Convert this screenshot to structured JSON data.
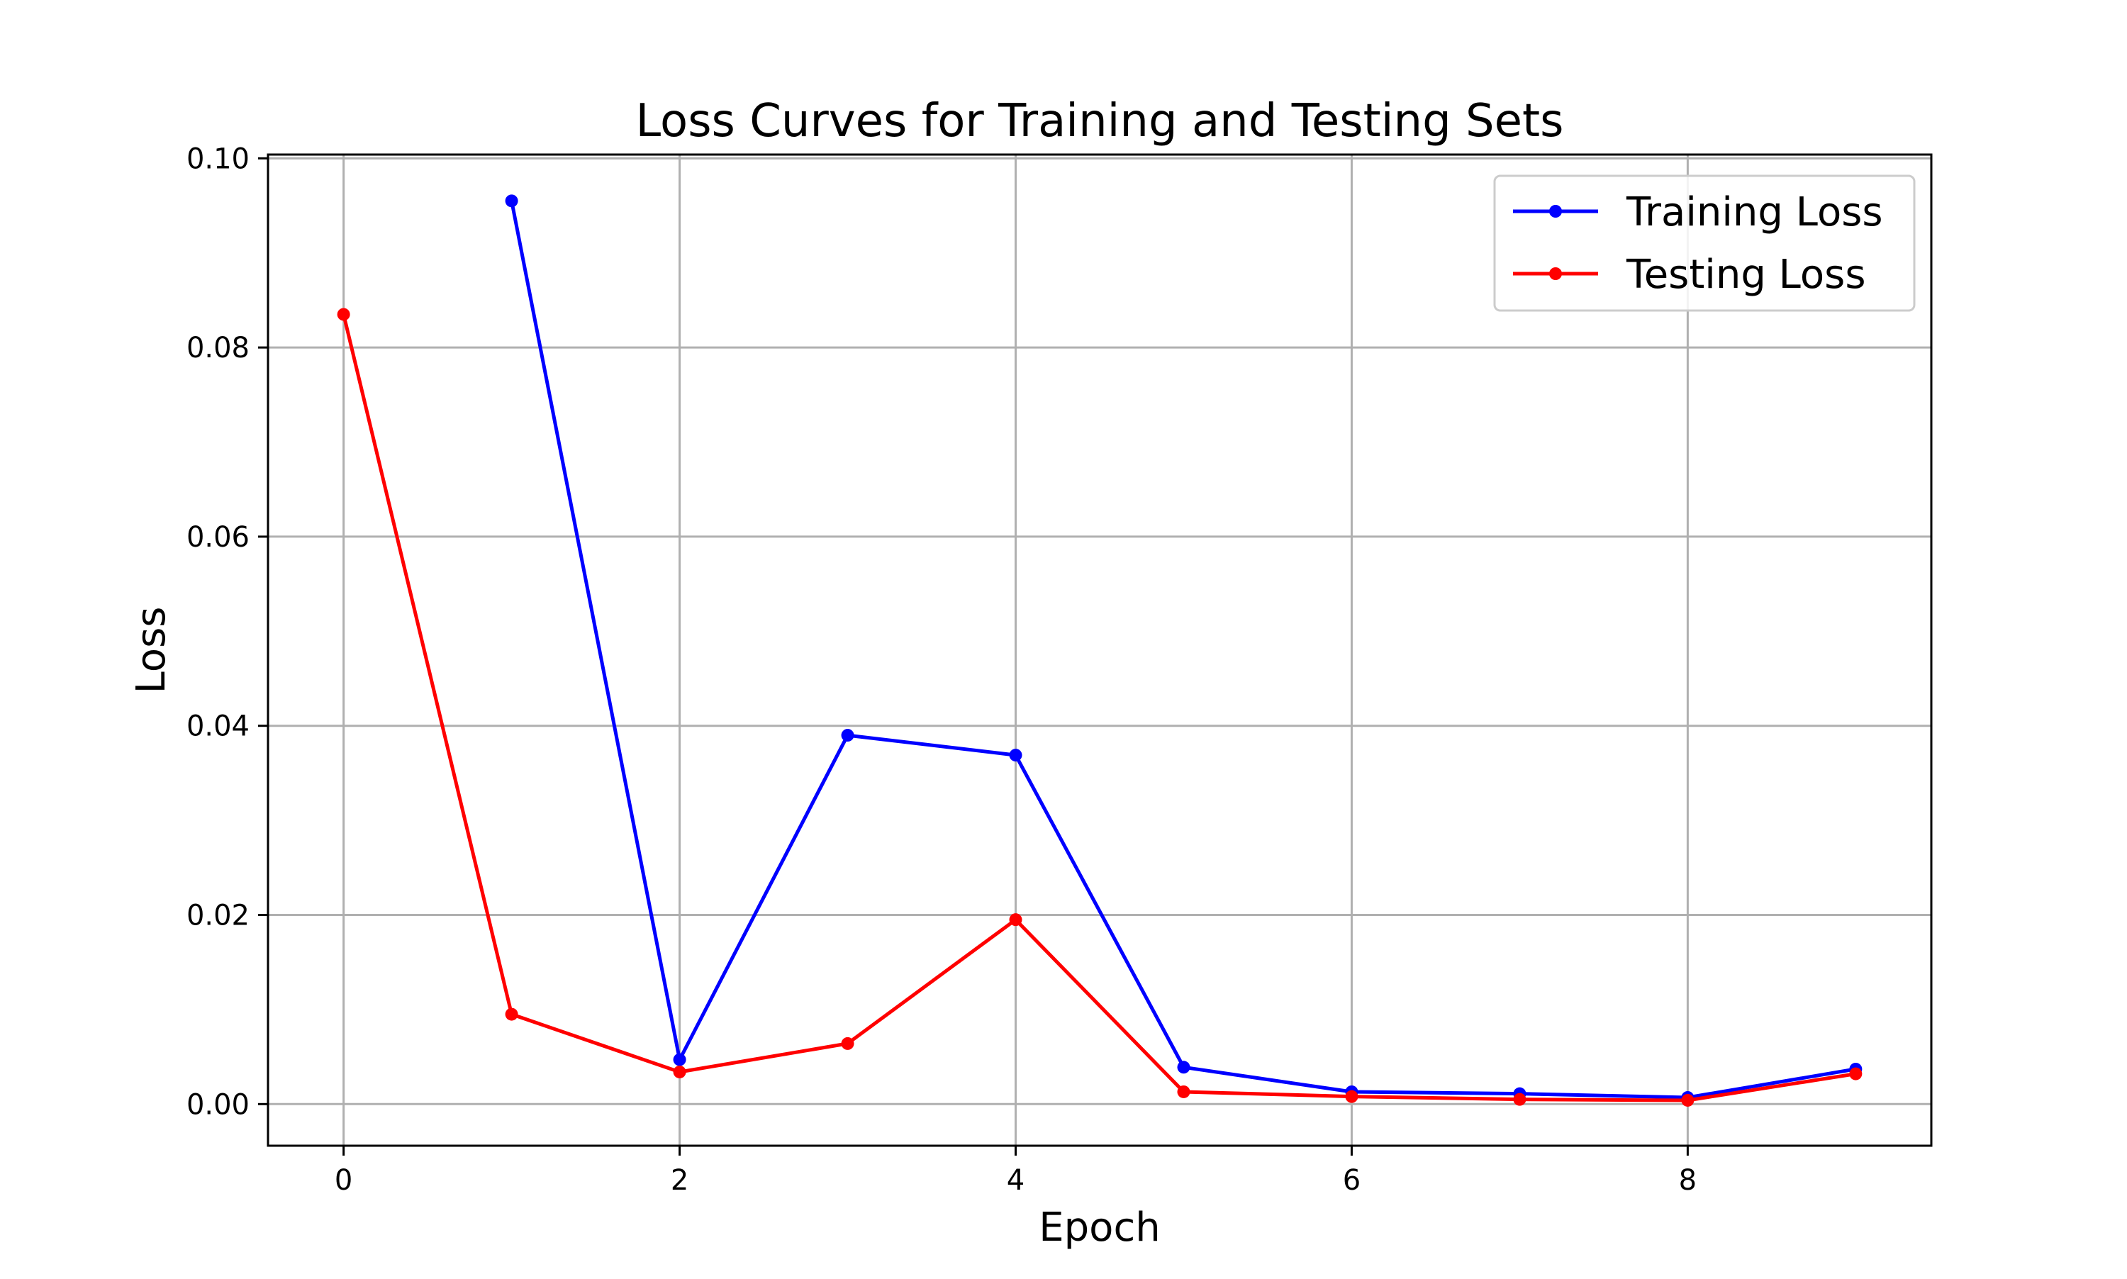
{
  "chart_data": {
    "type": "line",
    "title": "Loss Curves for Training and Testing Sets",
    "xlabel": "Epoch",
    "ylabel": "Loss",
    "xlim": [
      -0.45,
      9.45
    ],
    "ylim": [
      -0.0044,
      0.1004
    ],
    "x_ticks": [
      0,
      2,
      4,
      6,
      8
    ],
    "x_tick_labels": [
      "0",
      "2",
      "4",
      "6",
      "8"
    ],
    "y_ticks": [
      0.0,
      0.02,
      0.04,
      0.06,
      0.08,
      0.1
    ],
    "y_tick_labels": [
      "0.00",
      "0.02",
      "0.04",
      "0.06",
      "0.08",
      "0.10"
    ],
    "grid": true,
    "legend_position": "top-right",
    "series": [
      {
        "name": "Training Loss",
        "color": "#0000ff",
        "marker": "circle",
        "x": [
          1,
          2,
          3,
          4,
          5,
          6,
          7,
          8,
          9
        ],
        "y": [
          0.0955,
          0.0047,
          0.039,
          0.0369,
          0.0039,
          0.0013,
          0.0011,
          0.0007,
          0.0037
        ]
      },
      {
        "name": "Testing Loss",
        "color": "#ff0000",
        "marker": "circle",
        "x": [
          0,
          1,
          2,
          3,
          4,
          5,
          6,
          7,
          8,
          9
        ],
        "y": [
          0.0835,
          0.0095,
          0.0034,
          0.0064,
          0.0195,
          0.0013,
          0.0008,
          0.0005,
          0.0004,
          0.0032
        ]
      }
    ]
  }
}
